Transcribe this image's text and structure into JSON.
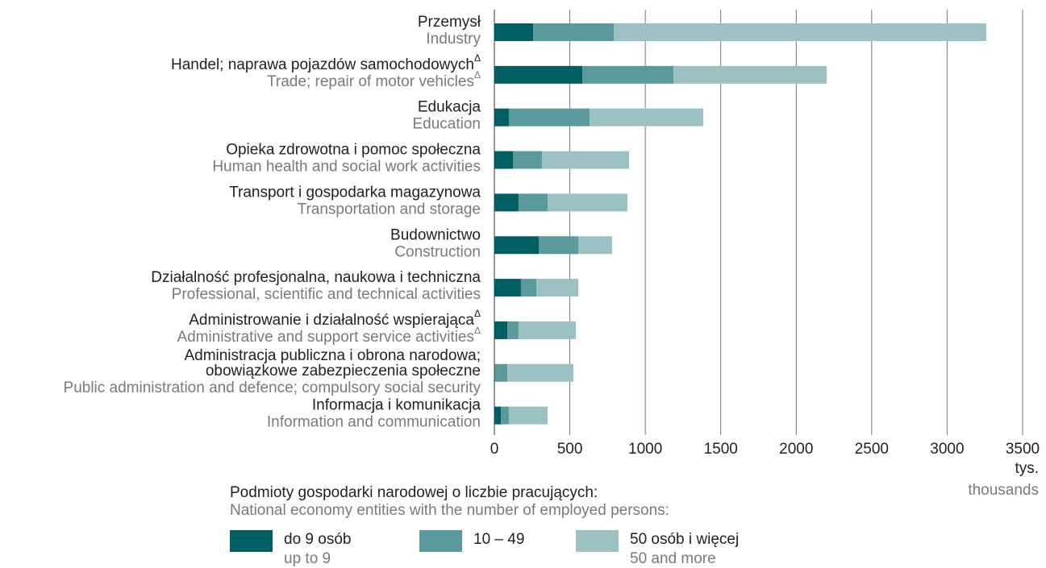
{
  "chart_data": {
    "type": "stacked-bar-horizontal",
    "categories": [
      {
        "pl": [
          "Przemysł"
        ],
        "en": "Industry"
      },
      {
        "pl": [
          "Handel; naprawa pojazdów samochodowych"
        ],
        "en": "Trade; repair of motor vehicles",
        "note": "Δ"
      },
      {
        "pl": [
          "Edukacja"
        ],
        "en": "Education"
      },
      {
        "pl": [
          "Opieka zdrowotna i pomoc społeczna"
        ],
        "en": "Human health and social work activities"
      },
      {
        "pl": [
          "Transport i gospodarka magazynowa"
        ],
        "en": "Transportation and storage"
      },
      {
        "pl": [
          "Budownictwo"
        ],
        "en": "Construction"
      },
      {
        "pl": [
          "Działalność profesjonalna, naukowa i techniczna"
        ],
        "en": "Professional, scientific and technical activities"
      },
      {
        "pl": [
          "Administrowanie i działalność wspierająca"
        ],
        "en": "Administrative and support service activities",
        "note": "Δ"
      },
      {
        "pl": [
          "Administracja publiczna i obrona narodowa;",
          "obowiązkowe zabezpieczenia społeczne"
        ],
        "en": "Public administration and defence; compulsory social security"
      },
      {
        "pl": [
          "Informacja i komunikacja"
        ],
        "en": "Information and communication"
      }
    ],
    "series": [
      {
        "name": "do 9 osób",
        "name_en": "up to 9",
        "color": "#005f63",
        "values": [
          257,
          583,
          96,
          123,
          160,
          294,
          176,
          86,
          3,
          43
        ]
      },
      {
        "name": "10 – 49",
        "color": "#5a9a9c",
        "values": [
          534,
          604,
          535,
          192,
          193,
          262,
          102,
          74,
          83,
          53
        ]
      },
      {
        "name": "50 osób i więcej",
        "name_en": "50 and more",
        "color": "#9bc1c2",
        "values": [
          2469,
          1015,
          753,
          578,
          529,
          224,
          278,
          380,
          438,
          257
        ]
      }
    ],
    "xlim": [
      0,
      3500
    ],
    "xticks": [
      0,
      500,
      1000,
      1500,
      2000,
      2500,
      3000,
      3500
    ],
    "x_unit": "tys.",
    "x_unit_en": "thousands",
    "legend_title": "Podmioty gospodarki narodowej o liczbie pracujących:",
    "legend_title_en": "National economy entities with the number of employed persons:",
    "grid": true
  }
}
